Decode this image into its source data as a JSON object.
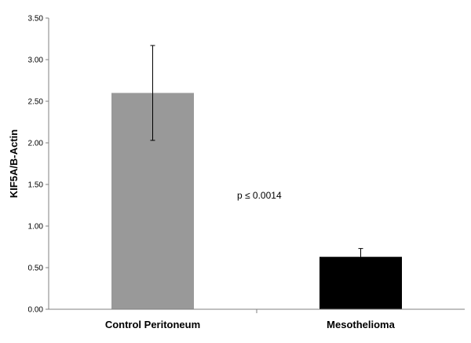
{
  "chart_data": {
    "type": "bar",
    "title": "",
    "xlabel": "",
    "ylabel": "KIF5A/B-Actin",
    "ylim": [
      0,
      3.5
    ],
    "yticks": [
      "0.00",
      "0.50",
      "1.00",
      "1.50",
      "2.00",
      "2.50",
      "3.00",
      "3.50"
    ],
    "categories": [
      "Control Peritoneum",
      "Mesothelioma"
    ],
    "values": [
      2.6,
      0.63
    ],
    "errors": [
      0.57,
      0.1
    ],
    "bar_colors": [
      "#999999",
      "#000000"
    ],
    "grid": false,
    "annotation": "p ≤ 0.0014"
  }
}
